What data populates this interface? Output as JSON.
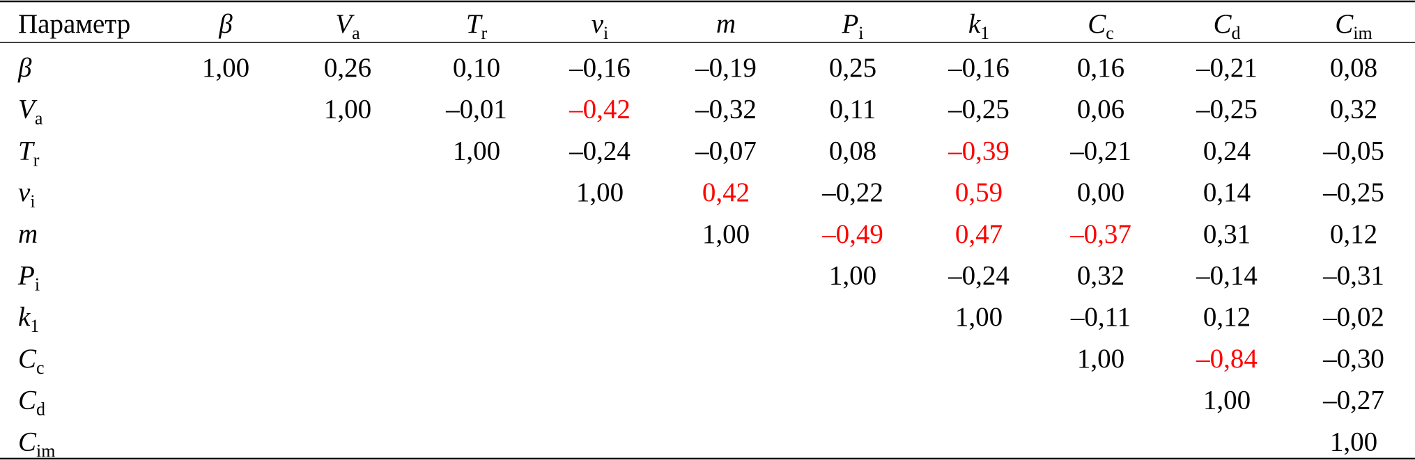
{
  "header": {
    "first": "Параметр",
    "columns": [
      {
        "symbol": "β"
      },
      {
        "symbol": "V",
        "sub": "a"
      },
      {
        "symbol": "T",
        "sub": "r"
      },
      {
        "symbol": "v",
        "sub": "i"
      },
      {
        "symbol": "m"
      },
      {
        "symbol": "P",
        "sub": "i"
      },
      {
        "symbol": "k",
        "sub": "1"
      },
      {
        "symbol": "C",
        "sub": "c"
      },
      {
        "symbol": "C",
        "sub": "d"
      },
      {
        "symbol": "C",
        "sub": "im"
      }
    ]
  },
  "table": {
    "rows": [
      {
        "label": {
          "symbol": "β"
        },
        "cells": [
          "1,00",
          "0,26",
          "0,10",
          "–0,16",
          "–0,19",
          "0,25",
          "–0,16",
          "0,16",
          "–0,21",
          "0,08"
        ]
      },
      {
        "label": {
          "symbol": "V",
          "sub": "a"
        },
        "cells": [
          "1,00",
          "–0,01",
          {
            "text": "–0,42",
            "color": "#ff0000"
          },
          "–0,32",
          "0,11",
          "–0,25",
          "0,06",
          "–0,25",
          "0,32"
        ]
      },
      {
        "label": {
          "symbol": "T",
          "sub": "r"
        },
        "cells": [
          "1,00",
          "–0,24",
          "–0,07",
          "0,08",
          {
            "text": "–0,39",
            "color": "#ff0000"
          },
          "–0,21",
          "0,24",
          "–0,05"
        ]
      },
      {
        "label": {
          "symbol": "v",
          "sub": "i"
        },
        "cells": [
          "1,00",
          {
            "text": "0,42",
            "color": "#ff0000"
          },
          "–0,22",
          {
            "text": "0,59",
            "color": "#ff0000"
          },
          "0,00",
          "0,14",
          "–0,25"
        ]
      },
      {
        "label": {
          "symbol": "m"
        },
        "cells": [
          "1,00",
          {
            "text": "–0,49",
            "color": "#ff0000"
          },
          {
            "text": "0,47",
            "color": "#ff0000"
          },
          {
            "text": "–0,37",
            "color": "#ff0000"
          },
          "0,31",
          "0,12"
        ]
      },
      {
        "label": {
          "symbol": "P",
          "sub": "i"
        },
        "cells": [
          "1,00",
          "–0,24",
          "0,32",
          "–0,14",
          "–0,31"
        ]
      },
      {
        "label": {
          "symbol": "k",
          "sub": "1"
        },
        "cells": [
          "1,00",
          "–0,11",
          "0,12",
          "–0,02"
        ]
      },
      {
        "label": {
          "symbol": "C",
          "sub": "c"
        },
        "cells": [
          "1,00",
          {
            "text": "–0,84",
            "color": "#ff0000"
          },
          "–0,30"
        ]
      },
      {
        "label": {
          "symbol": "C",
          "sub": "d"
        },
        "cells": [
          "1,00",
          "–0,27"
        ]
      },
      {
        "label": {
          "symbol": "C",
          "sub": "im"
        },
        "cells": [
          "1,00"
        ]
      }
    ]
  }
}
